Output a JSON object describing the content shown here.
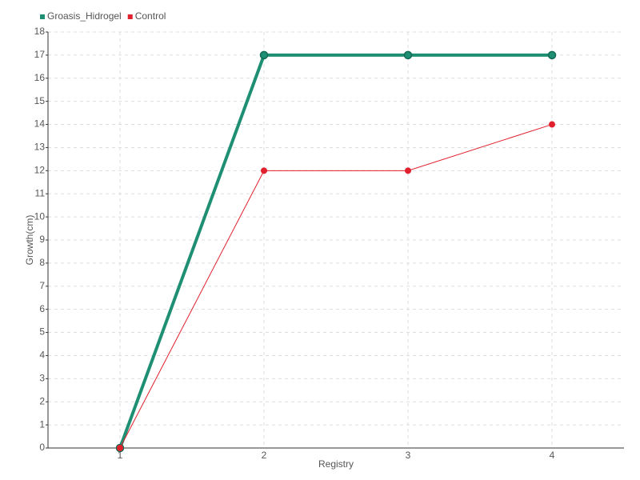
{
  "chart_data": {
    "type": "line",
    "x_label": "Registry",
    "y_label": "Growth(cm)",
    "categories": [
      "1",
      "2",
      "3",
      "4"
    ],
    "series": [
      {
        "name": "Groasis_Hidrogel",
        "color": "#1f8f74",
        "values": [
          0,
          17,
          17,
          17
        ]
      },
      {
        "name": "Control",
        "color": "#e0202c",
        "values": [
          0,
          12,
          12,
          14
        ]
      }
    ],
    "ylim": [
      0,
      18
    ],
    "yticks": [
      0,
      1,
      2,
      3,
      4,
      5,
      6,
      7,
      8,
      9,
      10,
      11,
      12,
      13,
      14,
      15,
      16,
      17,
      18
    ],
    "grid": true,
    "legend": "top-left"
  }
}
